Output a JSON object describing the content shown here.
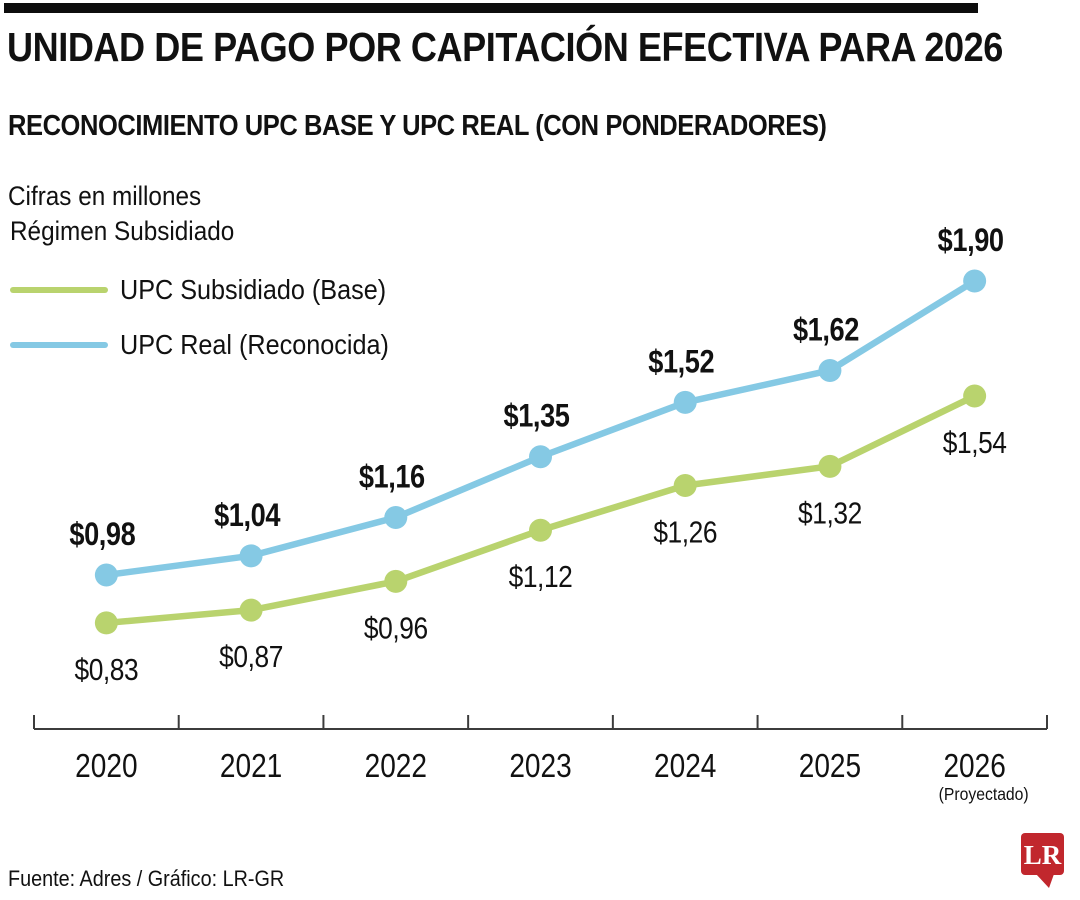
{
  "header": {
    "title": "UNIDAD DE PAGO POR CAPITACIÓN EFECTIVA PARA 2026",
    "subtitle": "RECONOCIMIENTO UPC BASE Y UPC REAL (CON PONDERADORES)",
    "units_note": "Cifras en millones",
    "regime_label": "Régimen Subsidiado"
  },
  "legend": [
    {
      "label": "UPC Subsidiado (Base)",
      "color": "#b9d36e"
    },
    {
      "label": "UPC Real (Reconocida)",
      "color": "#85c9e4"
    }
  ],
  "chart_data": {
    "type": "line",
    "title": "RECONOCIMIENTO UPC BASE Y UPC REAL (CON PONDERADORES)",
    "subtitle": "Régimen Subsidiado",
    "units": "Cifras en millones",
    "categories": [
      "2020",
      "2021",
      "2022",
      "2023",
      "2024",
      "2025",
      "2026"
    ],
    "x_axis_note": {
      "category": "2026",
      "label": "(Proyectado)"
    },
    "series": [
      {
        "name": "UPC Subsidiado (Base)",
        "color": "#b9d36e",
        "values": [
          0.83,
          0.87,
          0.96,
          1.12,
          1.26,
          1.32,
          1.54
        ],
        "labels": [
          "$0,83",
          "$0,87",
          "$0,96",
          "$1,12",
          "$1,26",
          "$1,32",
          "$1,54"
        ],
        "label_position": "below",
        "label_weight": "regular"
      },
      {
        "name": "UPC Real (Reconocida)",
        "color": "#85c9e4",
        "values": [
          0.98,
          1.04,
          1.16,
          1.35,
          1.52,
          1.62,
          1.9
        ],
        "labels": [
          "$0,98",
          "$1,04",
          "$1,16",
          "$1,35",
          "$1,52",
          "$1,62",
          "$1,90"
        ],
        "label_position": "above",
        "label_weight": "bold"
      }
    ],
    "ylim": [
      0.7,
      2.0
    ],
    "grid": false,
    "legend_position": "top-left",
    "axis_color": "#3c3c3c",
    "label_color": "#111111"
  },
  "footer": {
    "source": "Fuente: Adres / Gráfico: LR-GR",
    "logo_text": "LR",
    "logo_color": "#c1272d"
  }
}
